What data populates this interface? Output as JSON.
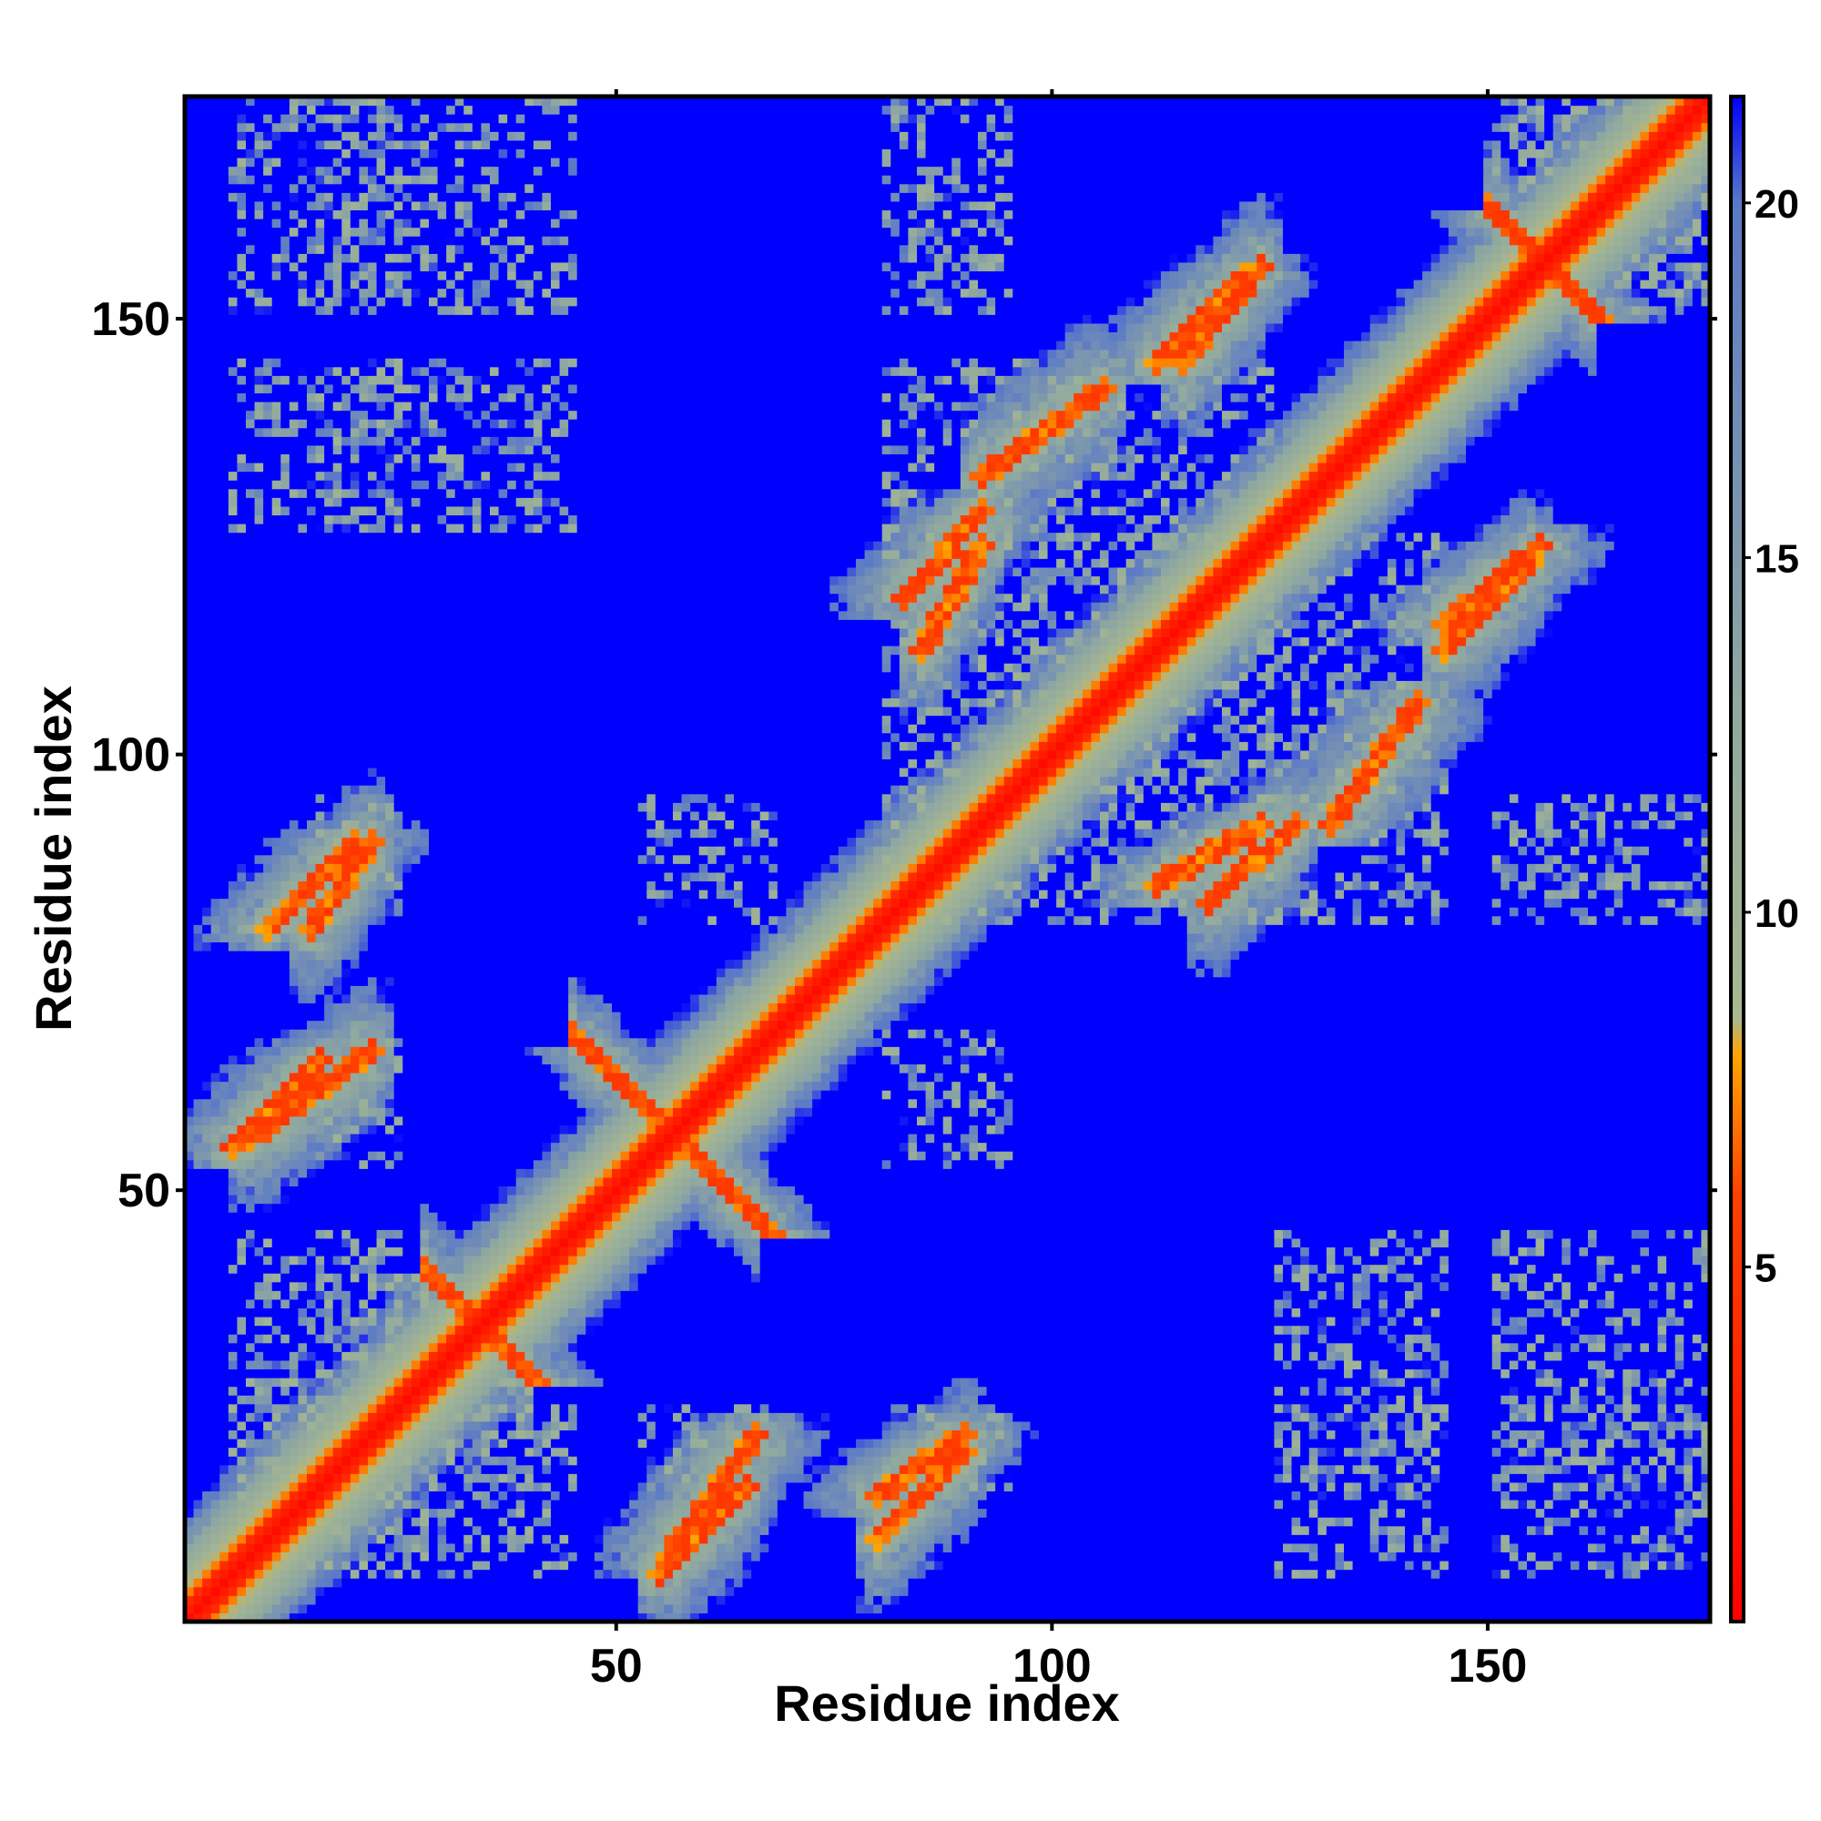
{
  "chart_data": {
    "type": "heatmap",
    "title": "",
    "xlabel": "Residue index",
    "ylabel": "Residue index",
    "n_residues": 175,
    "xlim": [
      1,
      175
    ],
    "ylim": [
      1,
      175
    ],
    "x_ticks": [
      50,
      100,
      150
    ],
    "y_ticks": [
      50,
      100,
      150
    ],
    "colorbar": {
      "range": [
        0,
        21.5
      ],
      "ticks": [
        5,
        10,
        15,
        20
      ],
      "stops": [
        {
          "value": 0,
          "color": "#ff0000"
        },
        {
          "value": 6,
          "color": "#ff4000"
        },
        {
          "value": 8,
          "color": "#ffa500"
        },
        {
          "value": 8.5,
          "color": "#a8b890"
        },
        {
          "value": 13,
          "color": "#90a8a0"
        },
        {
          "value": 20,
          "color": "#5a78c8"
        },
        {
          "value": 21.5,
          "color": "#0000ff"
        }
      ]
    },
    "cutoff_color": "#0000ff",
    "diagonal_band": {
      "core_width": 2,
      "shoulder_width": 8
    },
    "contact_features": [
      {
        "type": "antiparallel",
        "i_range": [
          45,
          66
        ],
        "j_center": 56
      },
      {
        "type": "parallel",
        "i_range": [
          55,
          65
        ],
        "j_range": [
          6,
          16
        ]
      },
      {
        "type": "parallel",
        "i_range": [
          80,
          90
        ],
        "j_range": [
          10,
          20
        ]
      },
      {
        "type": "parallel",
        "i_range": [
          15,
          22
        ],
        "j_range": [
          80,
          90
        ]
      },
      {
        "type": "parallel",
        "i_range": [
          8,
          22
        ],
        "j_range": [
          56,
          66
        ]
      },
      {
        "type": "parallel",
        "i_range": [
          118,
          128
        ],
        "j_range": [
          83,
          92
        ]
      },
      {
        "type": "parallel",
        "i_range": [
          145,
          155
        ],
        "j_range": [
          112,
          122
        ]
      },
      {
        "type": "parallel",
        "i_range": [
          85,
          92
        ],
        "j_range": [
          112,
          124
        ]
      },
      {
        "type": "parallel",
        "i_range": [
          115,
          124
        ],
        "j_range": [
          145,
          156
        ]
      },
      {
        "type": "antiparallel",
        "i_range": [
          150,
          162
        ],
        "j_center": 156
      },
      {
        "type": "antiparallel",
        "i_range": [
          28,
          40
        ],
        "j_center": 34
      },
      {
        "type": "parallel",
        "i_range": [
          92,
          106
        ],
        "j_range": [
          132,
          142
        ]
      }
    ]
  }
}
